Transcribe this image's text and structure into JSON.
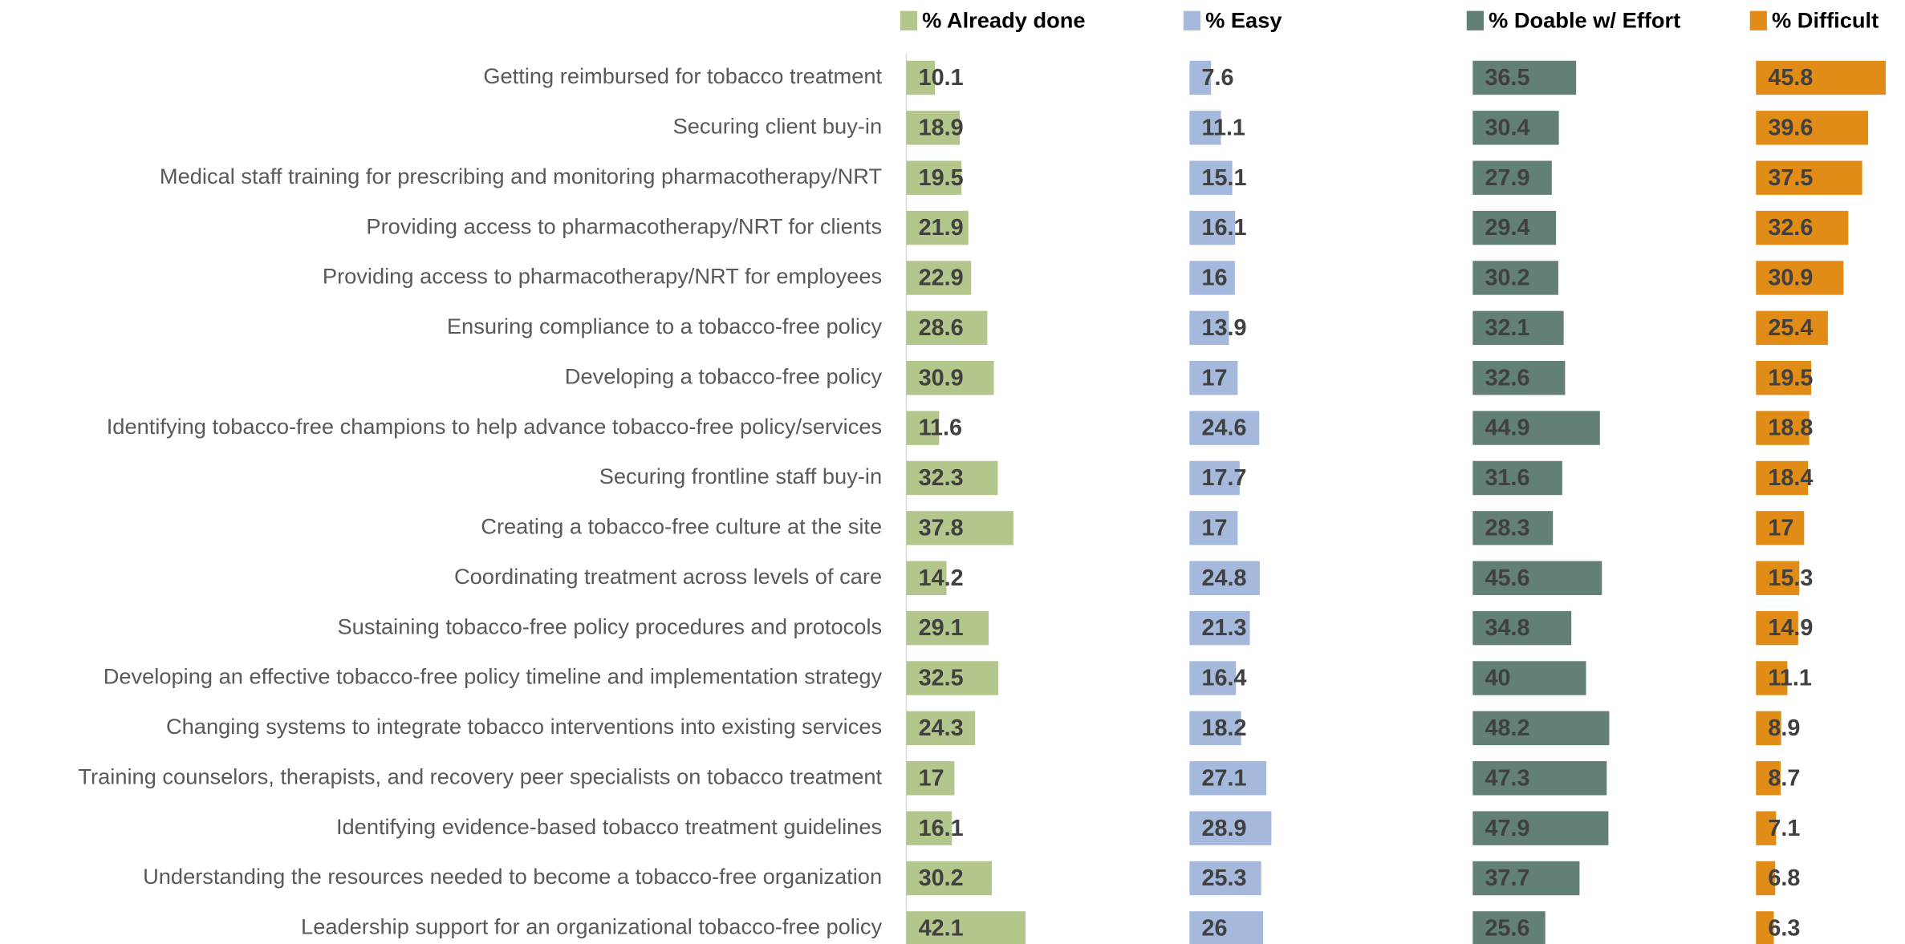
{
  "chart_data": {
    "type": "bar",
    "orientation": "horizontal",
    "categories": [
      "Getting reimbursed for tobacco treatment",
      "Securing client buy-in",
      "Medical staff training for prescribing and monitoring pharmacotherapy/NRT",
      "Providing access to pharmacotherapy/NRT for clients",
      "Providing access to pharmacotherapy/NRT for employees",
      "Ensuring compliance to a tobacco-free policy",
      "Developing a tobacco-free policy",
      "Identifying tobacco-free champions to help advance tobacco-free policy/services",
      "Securing frontline staff buy-in",
      "Creating a tobacco-free culture at the site",
      "Coordinating treatment across levels of care",
      "Sustaining tobacco-free policy procedures and protocols",
      "Developing an effective tobacco-free policy timeline and implementation strategy",
      "Changing systems to integrate tobacco interventions into existing services",
      "Training counselors, therapists, and recovery peer specialists on tobacco treatment",
      "Identifying evidence-based tobacco treatment guidelines",
      "Understanding the resources needed to become a tobacco-free organization",
      "Leadership support for an organizational tobacco-free policy"
    ],
    "series": [
      {
        "name": "% Already done",
        "color": "#b3c68b",
        "values": [
          10.1,
          18.9,
          19.5,
          21.9,
          22.9,
          28.6,
          30.9,
          11.6,
          32.3,
          37.8,
          14.2,
          29.1,
          32.5,
          24.3,
          17,
          16.1,
          30.2,
          42.1
        ]
      },
      {
        "name": "% Easy",
        "color": "#a4b9db",
        "values": [
          7.6,
          11.1,
          15.1,
          16.1,
          16,
          13.9,
          17,
          24.6,
          17.7,
          17,
          24.8,
          21.3,
          16.4,
          18.2,
          27.1,
          28.9,
          25.3,
          26
        ]
      },
      {
        "name": "% Doable w/ Effort",
        "color": "#627f78",
        "values": [
          36.5,
          30.4,
          27.9,
          29.4,
          30.2,
          32.1,
          32.6,
          44.9,
          31.6,
          28.3,
          45.6,
          34.8,
          40,
          48.2,
          47.3,
          47.9,
          37.7,
          25.6
        ]
      },
      {
        "name": "% Difficult",
        "color": "#e08c17",
        "values": [
          45.8,
          39.6,
          37.5,
          32.6,
          30.9,
          25.4,
          19.5,
          18.8,
          18.4,
          17,
          15.3,
          14.9,
          11.1,
          8.9,
          8.7,
          7.1,
          6.8,
          6.3
        ]
      }
    ],
    "xlim": [
      0,
      100
    ]
  }
}
